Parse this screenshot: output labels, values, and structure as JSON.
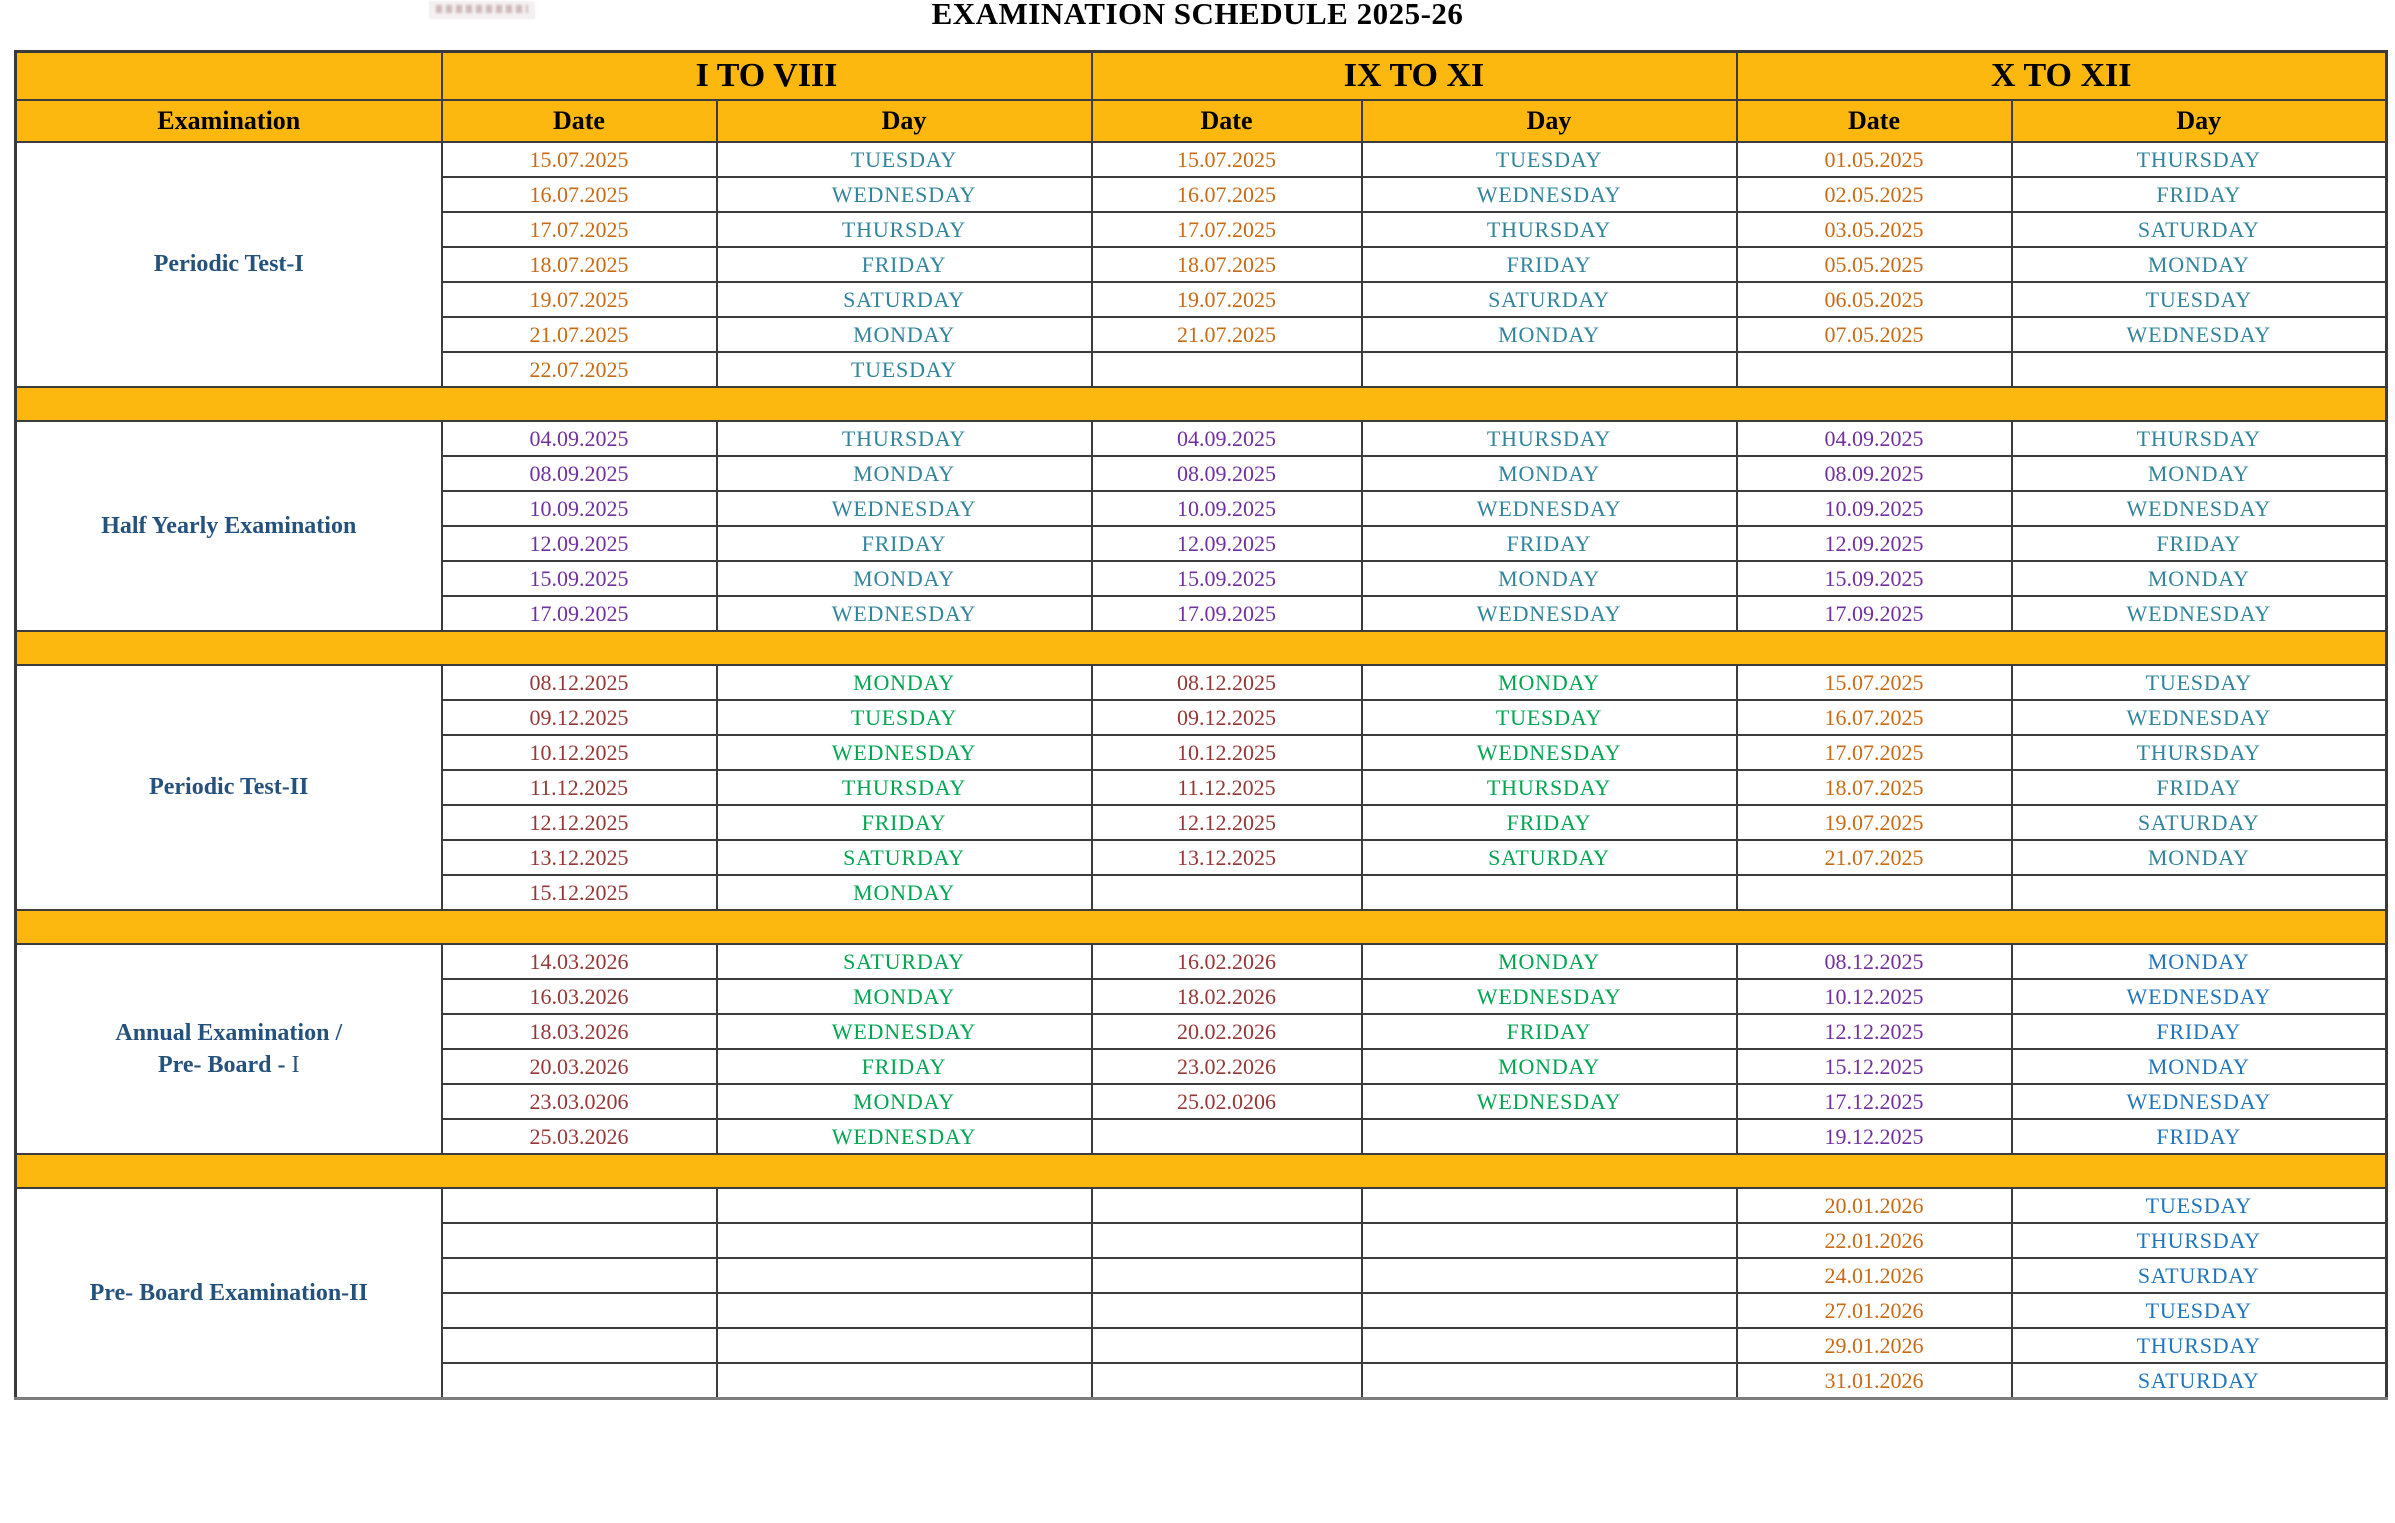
{
  "title": "EXAMINATION SCHEDULE 2025-26",
  "logo": {
    "name": "school-logo"
  },
  "colors": {
    "header_bg": "#FCB80F",
    "orange": "#C96A14",
    "teal": "#31849B",
    "purple": "#7030A0",
    "dark_red": "#943735",
    "green": "#00A551",
    "blue": "#2175BD",
    "navy": "#24527D"
  },
  "table": {
    "group_headers": [
      "I TO VIII",
      "IX TO XI",
      "X TO XII"
    ],
    "col_headers": {
      "examination": "Examination",
      "date": "Date",
      "day": "Day"
    },
    "sections": [
      {
        "label": "Periodic Test-I",
        "label_lines": [
          "Periodic Test-I"
        ],
        "styles": {
          "date1": "orange",
          "day1": "teal",
          "date2": "orange",
          "day2": "teal",
          "date3": "orange",
          "day3": "teal"
        },
        "rows": [
          [
            "15.07.2025",
            "TUESDAY",
            "15.07.2025",
            "TUESDAY",
            "01.05.2025",
            "THURSDAY"
          ],
          [
            "16.07.2025",
            "WEDNESDAY",
            "16.07.2025",
            "WEDNESDAY",
            "02.05.2025",
            "FRIDAY"
          ],
          [
            "17.07.2025",
            "THURSDAY",
            "17.07.2025",
            "THURSDAY",
            "03.05.2025",
            "SATURDAY"
          ],
          [
            "18.07.2025",
            "FRIDAY",
            "18.07.2025",
            "FRIDAY",
            "05.05.2025",
            "MONDAY"
          ],
          [
            "19.07.2025",
            "SATURDAY",
            "19.07.2025",
            "SATURDAY",
            "06.05.2025",
            "TUESDAY"
          ],
          [
            "21.07.2025",
            "MONDAY",
            "21.07.2025",
            "MONDAY",
            "07.05.2025",
            "WEDNESDAY"
          ],
          [
            "22.07.2025",
            "TUESDAY",
            "",
            "",
            "",
            ""
          ]
        ]
      },
      {
        "label": "Half Yearly Examination",
        "label_lines": [
          "Half Yearly Examination"
        ],
        "styles": {
          "date1": "purple",
          "day1": "teal",
          "date2": "purple",
          "day2": "teal",
          "date3": "purple",
          "day3": "teal"
        },
        "rows": [
          [
            "04.09.2025",
            "THURSDAY",
            "04.09.2025",
            "THURSDAY",
            "04.09.2025",
            "THURSDAY"
          ],
          [
            "08.09.2025",
            "MONDAY",
            "08.09.2025",
            "MONDAY",
            "08.09.2025",
            "MONDAY"
          ],
          [
            "10.09.2025",
            "WEDNESDAY",
            "10.09.2025",
            "WEDNESDAY",
            "10.09.2025",
            "WEDNESDAY"
          ],
          [
            "12.09.2025",
            "FRIDAY",
            "12.09.2025",
            "FRIDAY",
            "12.09.2025",
            "FRIDAY"
          ],
          [
            "15.09.2025",
            "MONDAY",
            "15.09.2025",
            "MONDAY",
            "15.09.2025",
            "MONDAY"
          ],
          [
            "17.09.2025",
            "WEDNESDAY",
            "17.09.2025",
            "WEDNESDAY",
            "17.09.2025",
            "WEDNESDAY"
          ]
        ]
      },
      {
        "label": "Periodic Test-II",
        "label_lines": [
          "Periodic Test-II"
        ],
        "styles": {
          "date1": "dark_red",
          "day1": "green",
          "date2": "dark_red",
          "day2": "green",
          "date3": "orange",
          "day3": "teal"
        },
        "rows": [
          [
            "08.12.2025",
            "MONDAY",
            "08.12.2025",
            "MONDAY",
            "15.07.2025",
            "TUESDAY"
          ],
          [
            "09.12.2025",
            "TUESDAY",
            "09.12.2025",
            "TUESDAY",
            "16.07.2025",
            "WEDNESDAY"
          ],
          [
            "10.12.2025",
            "WEDNESDAY",
            "10.12.2025",
            "WEDNESDAY",
            "17.07.2025",
            "THURSDAY"
          ],
          [
            "11.12.2025",
            "THURSDAY",
            "11.12.2025",
            "THURSDAY",
            "18.07.2025",
            "FRIDAY"
          ],
          [
            "12.12.2025",
            "FRIDAY",
            "12.12.2025",
            "FRIDAY",
            "19.07.2025",
            "SATURDAY"
          ],
          [
            "13.12.2025",
            "SATURDAY",
            "13.12.2025",
            "SATURDAY",
            "21.07.2025",
            "MONDAY"
          ],
          [
            "15.12.2025",
            "MONDAY",
            "",
            "",
            "",
            ""
          ]
        ]
      },
      {
        "label": "Annual Examination / Pre- Board - I",
        "label_lines": [
          "Annual Examination /",
          "Pre- Board - "
        ],
        "label_suffix": "I",
        "styles": {
          "date1": "dark_red",
          "day1": "green",
          "date2": "dark_red",
          "day2": "green",
          "date3": "purple",
          "day3": "blue"
        },
        "rows": [
          [
            "14.03.2026",
            "SATURDAY",
            "16.02.2026",
            "MONDAY",
            "08.12.2025",
            "MONDAY"
          ],
          [
            "16.03.2026",
            "MONDAY",
            "18.02.2026",
            "WEDNESDAY",
            "10.12.2025",
            "WEDNESDAY"
          ],
          [
            "18.03.2026",
            "WEDNESDAY",
            "20.02.2026",
            "FRIDAY",
            "12.12.2025",
            "FRIDAY"
          ],
          [
            "20.03.2026",
            "FRIDAY",
            "23.02.2026",
            "MONDAY",
            "15.12.2025",
            "MONDAY"
          ],
          [
            "23.03.0206",
            "MONDAY",
            "25.02.0206",
            "WEDNESDAY",
            "17.12.2025",
            "WEDNESDAY"
          ],
          [
            "25.03.2026",
            "WEDNESDAY",
            "",
            "",
            "19.12.2025",
            "FRIDAY"
          ]
        ]
      },
      {
        "label": "Pre- Board Examination-II",
        "label_lines": [
          "Pre- Board Examination-II"
        ],
        "styles": {
          "date1": "orange",
          "day1": "blue",
          "date2": "orange",
          "day2": "blue",
          "date3": "orange",
          "day3": "blue"
        },
        "rows": [
          [
            "",
            "",
            "",
            "",
            "20.01.2026",
            "TUESDAY"
          ],
          [
            "",
            "",
            "",
            "",
            "22.01.2026",
            "THURSDAY"
          ],
          [
            "",
            "",
            "",
            "",
            "24.01.2026",
            "SATURDAY"
          ],
          [
            "",
            "",
            "",
            "",
            "27.01.2026",
            "TUESDAY"
          ],
          [
            "",
            "",
            "",
            "",
            "29.01.2026",
            "THURSDAY"
          ],
          [
            "",
            "",
            "",
            "",
            "31.01.2026",
            "SATURDAY"
          ]
        ]
      }
    ]
  }
}
